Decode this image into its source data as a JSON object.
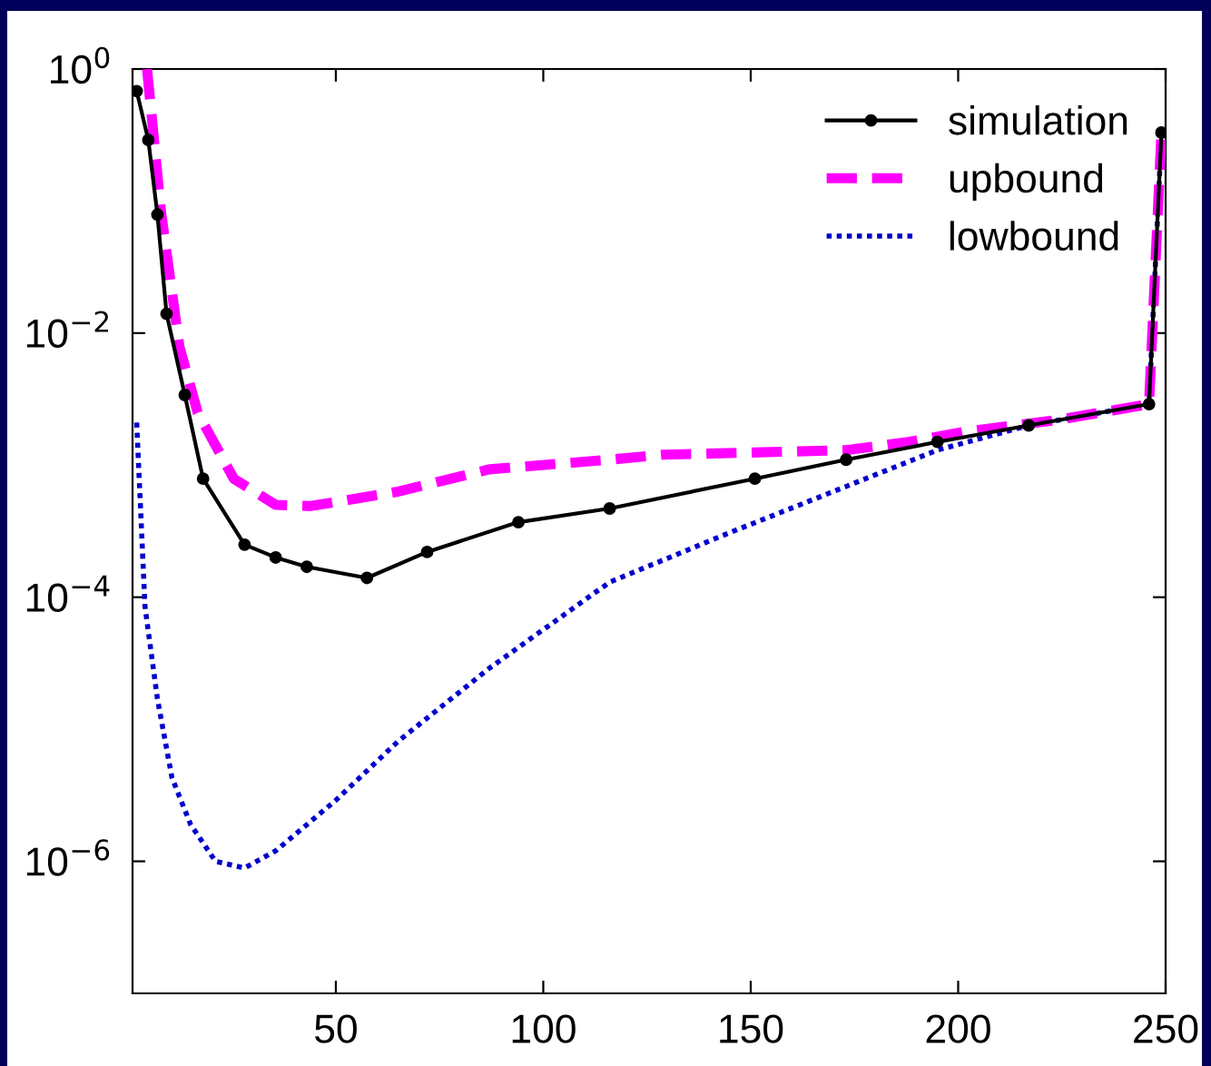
{
  "chart_data": {
    "type": "line",
    "log": "y",
    "xlim": [
      1,
      250
    ],
    "ylim": [
      1e-07,
      1
    ],
    "xticks": [
      50,
      100,
      150,
      200,
      250
    ],
    "yticks": [
      {
        "value": 1,
        "label": "10$^{0}$"
      },
      {
        "value": 0.01,
        "label": "10$^{−2}$"
      },
      {
        "value": 0.0001,
        "label": "10$^{−4}$"
      },
      {
        "value": 1e-06,
        "label": "10$^{−6}$"
      }
    ],
    "legend": "top right",
    "grid": false,
    "series": [
      {
        "name": "simulation",
        "color": "#000000",
        "line_style": "solid",
        "marker": "circle",
        "x": [
          2,
          4.8,
          7,
          9.2,
          13.6,
          18,
          28,
          35.5,
          43,
          57.5,
          72,
          94,
          116,
          151,
          173,
          195,
          217,
          246,
          249
        ],
        "values": [
          0.68,
          0.29,
          0.079,
          0.014,
          0.0034,
          0.00079,
          0.00025,
          0.0002,
          0.00017,
          0.00014,
          0.00022,
          0.00037,
          0.00047,
          0.00079,
          0.0011,
          0.0015,
          0.002,
          0.0029,
          0.33
        ]
      },
      {
        "name": "upbound",
        "color": "#ff00ff",
        "line_style": "dashed",
        "marker": "none",
        "x": [
          4.5,
          7.9,
          12.3,
          16.7,
          25.4,
          35.5,
          44,
          65,
          87,
          116,
          129,
          173,
          188,
          202,
          224,
          246,
          249
        ],
        "values": [
          1.0,
          0.081,
          0.0079,
          0.0025,
          0.00079,
          0.0005,
          0.00049,
          0.00063,
          0.00093,
          0.0011,
          0.0012,
          0.0013,
          0.0015,
          0.0018,
          0.0022,
          0.0029,
          0.33
        ]
      },
      {
        "name": "lowbound",
        "color": "#0000cc",
        "line_style": "dotted",
        "marker": "none",
        "x": [
          2,
          4,
          7,
          10.5,
          15,
          21,
          28,
          35.5,
          50,
          65,
          87,
          116,
          144,
          173,
          195,
          217,
          246,
          249
        ],
        "values": [
          0.0021,
          8.5e-05,
          1.7e-05,
          4.3e-06,
          1.9e-06,
          1e-06,
          8.9e-07,
          1.2e-06,
          2.9e-06,
          8.1e-06,
          2.9e-05,
          0.00013,
          0.0003,
          0.00069,
          0.0013,
          0.002,
          0.0029,
          0.33
        ]
      }
    ]
  }
}
